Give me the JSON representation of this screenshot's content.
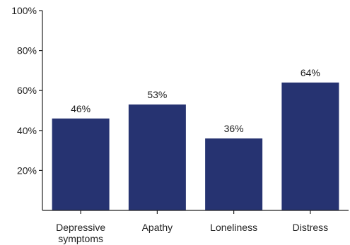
{
  "chart_data": {
    "type": "bar",
    "categories": [
      [
        "Depressive",
        "symptoms"
      ],
      [
        "Apathy"
      ],
      [
        "Loneliness"
      ],
      [
        "Distress"
      ]
    ],
    "values": [
      46,
      53,
      36,
      64
    ],
    "data_labels": [
      "46%",
      "53%",
      "36%",
      "64%"
    ],
    "ylim": [
      0,
      100
    ],
    "yticks": [
      20,
      40,
      60,
      80,
      100
    ],
    "ytick_labels": [
      "20%",
      "40%",
      "60%",
      "80%",
      "100%"
    ],
    "bar_color": "#263371",
    "grid": false,
    "title": "",
    "xlabel": "",
    "ylabel": ""
  }
}
